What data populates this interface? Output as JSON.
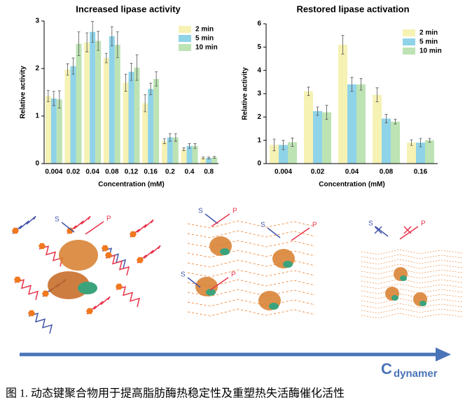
{
  "chart_data": [
    {
      "type": "bar",
      "title": "Increased lipase activity",
      "xlabel": "Concentration (mM)",
      "ylabel": "Relative activity",
      "categories": [
        "0.004",
        "0.02",
        "0.04",
        "0.08",
        "0.12",
        "0.16",
        "0.2",
        "0.4",
        "0.8"
      ],
      "series": [
        {
          "name": "2 min",
          "color": "#f6f2b4",
          "values": [
            1.42,
            1.98,
            2.55,
            2.22,
            1.7,
            1.27,
            0.47,
            0.3,
            0.12
          ],
          "errors": [
            0.12,
            0.12,
            0.2,
            0.1,
            0.18,
            0.18,
            0.05,
            0.03,
            0.02
          ]
        },
        {
          "name": "5 min",
          "color": "#8fd3e8",
          "values": [
            1.37,
            2.05,
            2.77,
            2.68,
            1.93,
            1.57,
            0.55,
            0.37,
            0.12
          ],
          "errors": [
            0.15,
            0.17,
            0.22,
            0.2,
            0.18,
            0.12,
            0.08,
            0.05,
            0.02
          ]
        },
        {
          "name": "10 min",
          "color": "#bde3b4",
          "values": [
            1.35,
            2.52,
            2.58,
            2.5,
            2.02,
            1.78,
            0.55,
            0.37,
            0.13
          ],
          "errors": [
            0.18,
            0.25,
            0.2,
            0.27,
            0.27,
            0.15,
            0.08,
            0.05,
            0.02
          ]
        }
      ],
      "ylim": [
        0,
        3
      ],
      "yticks": [
        0,
        1,
        2,
        3
      ]
    },
    {
      "type": "bar",
      "title": "Restored lipase activation",
      "xlabel": "Concentration (mM)",
      "ylabel": "Relative activity",
      "categories": [
        "0.004",
        "0.02",
        "0.04",
        "0.08",
        "0.16"
      ],
      "series": [
        {
          "name": "2 min",
          "color": "#f6f2b4",
          "values": [
            0.8,
            3.1,
            5.1,
            2.95,
            0.9
          ],
          "errors": [
            0.25,
            0.18,
            0.4,
            0.3,
            0.12
          ]
        },
        {
          "name": "5 min",
          "color": "#8fd3e8",
          "values": [
            0.8,
            2.25,
            3.4,
            1.93,
            0.9
          ],
          "errors": [
            0.2,
            0.18,
            0.3,
            0.18,
            0.18
          ]
        },
        {
          "name": "10 min",
          "color": "#bde3b4",
          "values": [
            0.92,
            2.2,
            3.4,
            1.8,
            1.0
          ],
          "errors": [
            0.18,
            0.3,
            0.25,
            0.1,
            0.08
          ]
        }
      ],
      "ylim": [
        0,
        6
      ],
      "yticks": [
        0,
        1,
        2,
        3,
        4,
        5,
        6
      ]
    }
  ],
  "diagram": {
    "substrate_labels": [
      "S",
      "S",
      "S",
      "S",
      "S"
    ],
    "product_labels": [
      "P",
      "P",
      "P",
      "P",
      "P"
    ],
    "axis_label": {
      "main": "C",
      "sub": "dynamer"
    }
  },
  "caption": "图 1. 动态键聚合物用于提高脂肪酶热稳定性及重塑热失活酶催化活性"
}
